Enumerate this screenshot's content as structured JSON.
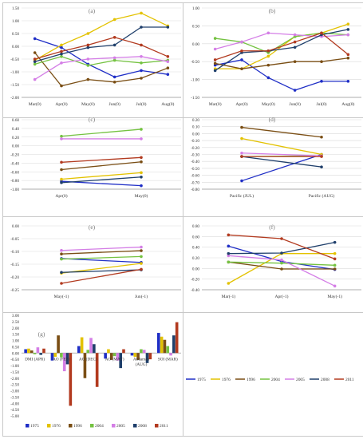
{
  "series_colors": {
    "1975": "#1f2ec6",
    "1976": "#e3c200",
    "1996": "#7a4e14",
    "2004": "#74c241",
    "2005": "#d47ee6",
    "2008": "#1f3f6b",
    "2011": "#b23a1f"
  },
  "series_order": [
    "1975",
    "1976",
    "1996",
    "2004",
    "2005",
    "2008",
    "2011"
  ],
  "legend_right": {
    "items": [
      "1975",
      "1976",
      "1996",
      "2004",
      "2005",
      "2008",
      "2011"
    ]
  },
  "chart_data": [
    {
      "id": "a",
      "panel_label": "(a)",
      "type": "line",
      "categories": [
        "Mar(0)",
        "Apr(0)",
        "May(0)",
        "Jun(0)",
        "Jul(0)",
        "Aug(0)"
      ],
      "ylim": [
        -2.0,
        1.5
      ],
      "yticks": [
        -2.0,
        -1.5,
        -1.0,
        -0.5,
        0.0,
        0.5,
        1.0,
        1.5
      ],
      "ytick_labels": [
        "-2.00",
        "-1.50",
        "-1.00",
        "-0.50",
        "0.00",
        "0.50",
        "1.00",
        "1.50"
      ],
      "grid": true,
      "series": [
        {
          "name": "1975",
          "values": [
            0.3,
            -0.05,
            -0.7,
            -1.2,
            -0.95,
            -1.1
          ]
        },
        {
          "name": "1976",
          "values": [
            -0.55,
            0.05,
            0.5,
            1.05,
            1.3,
            0.8
          ]
        },
        {
          "name": "1996",
          "values": [
            -0.25,
            -1.55,
            -1.3,
            -1.4,
            -1.25,
            -0.85
          ]
        },
        {
          "name": "2004",
          "values": [
            -0.7,
            -0.4,
            -0.75,
            -0.55,
            -0.65,
            -0.55
          ]
        },
        {
          "name": "2005",
          "values": [
            -1.3,
            -0.65,
            -0.5,
            -0.45,
            -0.4,
            -0.6
          ]
        },
        {
          "name": "2008",
          "values": [
            -0.6,
            -0.3,
            -0.05,
            0.05,
            0.75,
            0.75
          ]
        },
        {
          "name": "2011",
          "values": [
            -0.5,
            -0.2,
            0.05,
            0.35,
            0.05,
            -0.4
          ]
        }
      ]
    },
    {
      "id": "b",
      "panel_label": "(b)",
      "type": "line",
      "categories": [
        "Mar(0)",
        "Apr(0)",
        "May(0)",
        "Jun(0)",
        "Jul(0)",
        "Aug(0)"
      ],
      "ylim": [
        -1.5,
        1.0
      ],
      "yticks": [
        -1.5,
        -1.0,
        -0.5,
        0.0,
        0.5,
        1.0
      ],
      "ytick_labels": [
        "-1.50",
        "-1.00",
        "-0.50",
        "0.00",
        "0.50",
        "1.00"
      ],
      "grid": true,
      "series": [
        {
          "name": "1975",
          "values": [
            -0.6,
            -0.45,
            -0.95,
            -1.3,
            -1.05,
            -1.05
          ]
        },
        {
          "name": "1976",
          "values": [
            -0.7,
            -0.7,
            -0.35,
            0.2,
            0.3,
            0.55
          ]
        },
        {
          "name": "1996",
          "values": [
            -0.55,
            -0.7,
            -0.6,
            -0.5,
            -0.5,
            -0.4
          ]
        },
        {
          "name": "2004",
          "values": [
            0.15,
            0.05,
            -0.25,
            0.2,
            0.3,
            0.25
          ]
        },
        {
          "name": "2005",
          "values": [
            -0.15,
            0.05,
            0.3,
            0.25,
            0.2,
            0.25
          ]
        },
        {
          "name": "2008",
          "values": [
            -0.75,
            -0.25,
            -0.2,
            -0.1,
            0.25,
            0.4
          ]
        },
        {
          "name": "2011",
          "values": [
            -0.45,
            -0.2,
            -0.2,
            0.05,
            0.3,
            -0.3
          ]
        }
      ]
    },
    {
      "id": "c",
      "panel_label": "(c)",
      "type": "line",
      "categories": [
        "Apr(0)",
        "May(0)"
      ],
      "ylim": [
        -1.0,
        0.6
      ],
      "yticks": [
        -1.0,
        -0.8,
        -0.6,
        -0.4,
        -0.2,
        0.0,
        0.2,
        0.4,
        0.6
      ],
      "ytick_labels": [
        "-1.00",
        "-0.80",
        "-0.60",
        "-0.40",
        "-0.20",
        "0.00",
        "0.20",
        "0.40",
        "0.60"
      ],
      "grid": true,
      "series": [
        {
          "name": "1975",
          "values": [
            -0.82,
            -0.92
          ]
        },
        {
          "name": "1976",
          "values": [
            -0.77,
            -0.62
          ]
        },
        {
          "name": "1996",
          "values": [
            -0.55,
            -0.37
          ]
        },
        {
          "name": "2004",
          "values": [
            0.22,
            0.38
          ]
        },
        {
          "name": "2005",
          "values": [
            0.16,
            0.16
          ]
        },
        {
          "name": "2008",
          "values": [
            -0.85,
            -0.72
          ]
        },
        {
          "name": "2011",
          "values": [
            -0.38,
            -0.27
          ]
        }
      ]
    },
    {
      "id": "d",
      "panel_label": "(d)",
      "type": "line",
      "categories": [
        "Pacific (JUL)",
        "Pacific (AUG)"
      ],
      "ylim": [
        -0.8,
        0.2
      ],
      "yticks": [
        -0.8,
        -0.7,
        -0.6,
        -0.5,
        -0.4,
        -0.3,
        -0.2,
        -0.1,
        0.0,
        0.1,
        0.2
      ],
      "ytick_labels": [
        "-0.80",
        "-0.70",
        "-0.60",
        "-0.50",
        "-0.40",
        "-0.30",
        "-0.20",
        "-0.10",
        "0.00",
        "0.10",
        "0.20"
      ],
      "grid": true,
      "series": [
        {
          "name": "1975",
          "values": [
            -0.68,
            -0.3
          ]
        },
        {
          "name": "1976",
          "values": [
            -0.07,
            -0.3
          ]
        },
        {
          "name": "1996",
          "values": [
            0.09,
            -0.05
          ]
        },
        {
          "name": "2004",
          "values": [
            -0.33,
            -0.32
          ]
        },
        {
          "name": "2005",
          "values": [
            -0.28,
            -0.32
          ]
        },
        {
          "name": "2008",
          "values": [
            -0.33,
            -0.48
          ]
        },
        {
          "name": "2011",
          "values": [
            -0.33,
            -0.33
          ]
        }
      ]
    },
    {
      "id": "e",
      "panel_label": "(e)",
      "type": "line",
      "categories": [
        "May(-1)",
        "Jun(-1)"
      ],
      "ylim": [
        -0.25,
        0.0
      ],
      "yticks": [
        -0.25,
        -0.2,
        -0.15,
        -0.1,
        -0.05,
        0.0
      ],
      "ytick_labels": [
        "-0.25",
        "-0.20",
        "-0.15",
        "-0.10",
        "-0.05",
        "0.00"
      ],
      "grid": true,
      "series": [
        {
          "name": "1975",
          "values": [
            -0.128,
            -0.143
          ]
        },
        {
          "name": "1976",
          "values": [
            -0.185,
            -0.147
          ]
        },
        {
          "name": "1996",
          "values": [
            -0.11,
            -0.097
          ]
        },
        {
          "name": "2004",
          "values": [
            -0.13,
            -0.12
          ]
        },
        {
          "name": "2005",
          "values": [
            -0.096,
            -0.083
          ]
        },
        {
          "name": "2008",
          "values": [
            -0.182,
            -0.172
          ]
        },
        {
          "name": "2011",
          "values": [
            -0.225,
            -0.17
          ]
        }
      ]
    },
    {
      "id": "f",
      "panel_label": "(f)",
      "type": "line",
      "categories": [
        "Mar(-1)",
        "Apr(-1)",
        "May(-1)"
      ],
      "ylim": [
        -0.4,
        0.8
      ],
      "yticks": [
        -0.4,
        -0.2,
        0.0,
        0.2,
        0.4,
        0.6,
        0.8
      ],
      "ytick_labels": [
        "-0.40",
        "-0.20",
        "0.00",
        "0.20",
        "0.40",
        "0.60",
        "0.80"
      ],
      "grid": true,
      "series": [
        {
          "name": "1975",
          "values": [
            0.42,
            0.13,
            -0.02
          ]
        },
        {
          "name": "1976",
          "values": [
            -0.28,
            0.28,
            0.28
          ]
        },
        {
          "name": "1996",
          "values": [
            0.12,
            -0.01,
            -0.01
          ]
        },
        {
          "name": "2004",
          "values": [
            0.12,
            0.1,
            0.06
          ]
        },
        {
          "name": "2005",
          "values": [
            0.24,
            0.16,
            -0.33
          ]
        },
        {
          "name": "2008",
          "values": [
            0.28,
            0.29,
            0.49
          ]
        },
        {
          "name": "2011",
          "values": [
            0.63,
            0.56,
            0.18
          ]
        }
      ]
    },
    {
      "id": "g",
      "panel_label": "(g)",
      "type": "bar",
      "categories": [
        "DMI (APR)",
        "AO (FEB)",
        "AO (DEC)",
        "AO (MAY)",
        "Andaman (AUG)",
        "SOI (MAR)"
      ],
      "category_lines": [
        [
          "DMI (APR)"
        ],
        [
          "AO (FEB)"
        ],
        [
          "AO (DEC)"
        ],
        [
          "AO (MAY)"
        ],
        [
          "Andaman",
          "(AUG)"
        ],
        [
          "SOI (MAR)"
        ]
      ],
      "ylim": [
        -5.0,
        3.0
      ],
      "yticks": [
        -5.0,
        -4.5,
        -4.0,
        -3.5,
        -3.0,
        -2.5,
        -2.0,
        -1.5,
        -1.0,
        -0.5,
        0.0,
        0.5,
        1.0,
        1.5,
        2.0,
        2.5,
        3.0
      ],
      "ytick_labels": [
        "-5.00",
        "-4.50",
        "-4.00",
        "-3.50",
        "-3.00",
        "-2.50",
        "-2.00",
        "-1.50",
        "-1.00",
        "-0.50",
        "0.00",
        "0.50",
        "1.00",
        "1.50",
        "2.00",
        "2.50",
        "3.00"
      ],
      "grid": false,
      "legend": {
        "placement": "bottom",
        "items": [
          "1975",
          "1976",
          "1996",
          "2004",
          "2005",
          "2008",
          "2011"
        ]
      },
      "series": [
        {
          "name": "1975",
          "values": [
            0.3,
            -0.6,
            0.55,
            -0.45,
            -0.2,
            1.6
          ]
        },
        {
          "name": "1976",
          "values": [
            0.35,
            -0.3,
            1.25,
            0.3,
            -0.3,
            1.3
          ]
        },
        {
          "name": "1996",
          "values": [
            0.2,
            1.4,
            -2.0,
            -0.55,
            -0.55,
            1.05
          ]
        },
        {
          "name": "2004",
          "values": [
            -0.1,
            -0.35,
            0.25,
            -0.25,
            0.3,
            0.55
          ]
        },
        {
          "name": "2005",
          "values": [
            0.45,
            -1.45,
            1.2,
            -0.6,
            0.25,
            -0.2
          ]
        },
        {
          "name": "2008",
          "values": [
            -0.15,
            -0.9,
            0.7,
            -1.2,
            -0.8,
            1.4
          ]
        },
        {
          "name": "2011",
          "values": [
            0.35,
            -4.2,
            -2.7,
            0.3,
            -0.5,
            2.45
          ]
        }
      ]
    }
  ]
}
